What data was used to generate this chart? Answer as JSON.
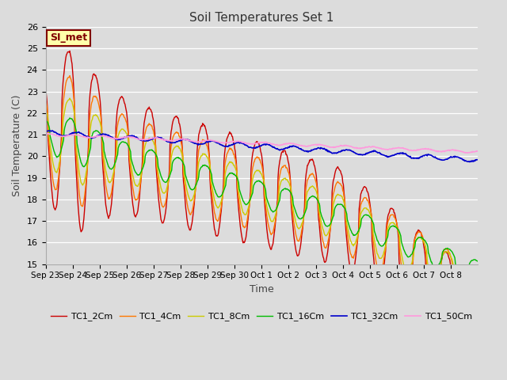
{
  "title": "Soil Temperatures Set 1",
  "xlabel": "Time",
  "ylabel": "Soil Temperature (C)",
  "ylim": [
    15.0,
    26.0
  ],
  "yticks": [
    15.0,
    16.0,
    17.0,
    18.0,
    19.0,
    20.0,
    21.0,
    22.0,
    23.0,
    24.0,
    25.0,
    26.0
  ],
  "bg_color": "#dcdcdc",
  "plot_bg_color": "#dcdcdc",
  "annotation_text": "SI_met",
  "annotation_bg": "#ffffaa",
  "annotation_border": "#800000",
  "series_colors": [
    "#cc0000",
    "#ff7700",
    "#cccc00",
    "#00bb00",
    "#0000cc",
    "#ff99dd"
  ],
  "series_lw": [
    1.0,
    1.0,
    1.0,
    1.0,
    1.2,
    1.2
  ],
  "legend_labels": [
    "TC1_2Cm",
    "TC1_4Cm",
    "TC1_8Cm",
    "TC1_16Cm",
    "TC1_32Cm",
    "TC1_50Cm"
  ],
  "tick_labels": [
    "Sep 23",
    "Sep 24",
    "Sep 25",
    "Sep 26",
    "Sep 27",
    "Sep 28",
    "Sep 29",
    "Sep 30",
    "Oct 1",
    "Oct 2",
    "Oct 3",
    "Oct 4",
    "Oct 5",
    "Oct 6",
    "Oct 7",
    "Oct 8"
  ]
}
